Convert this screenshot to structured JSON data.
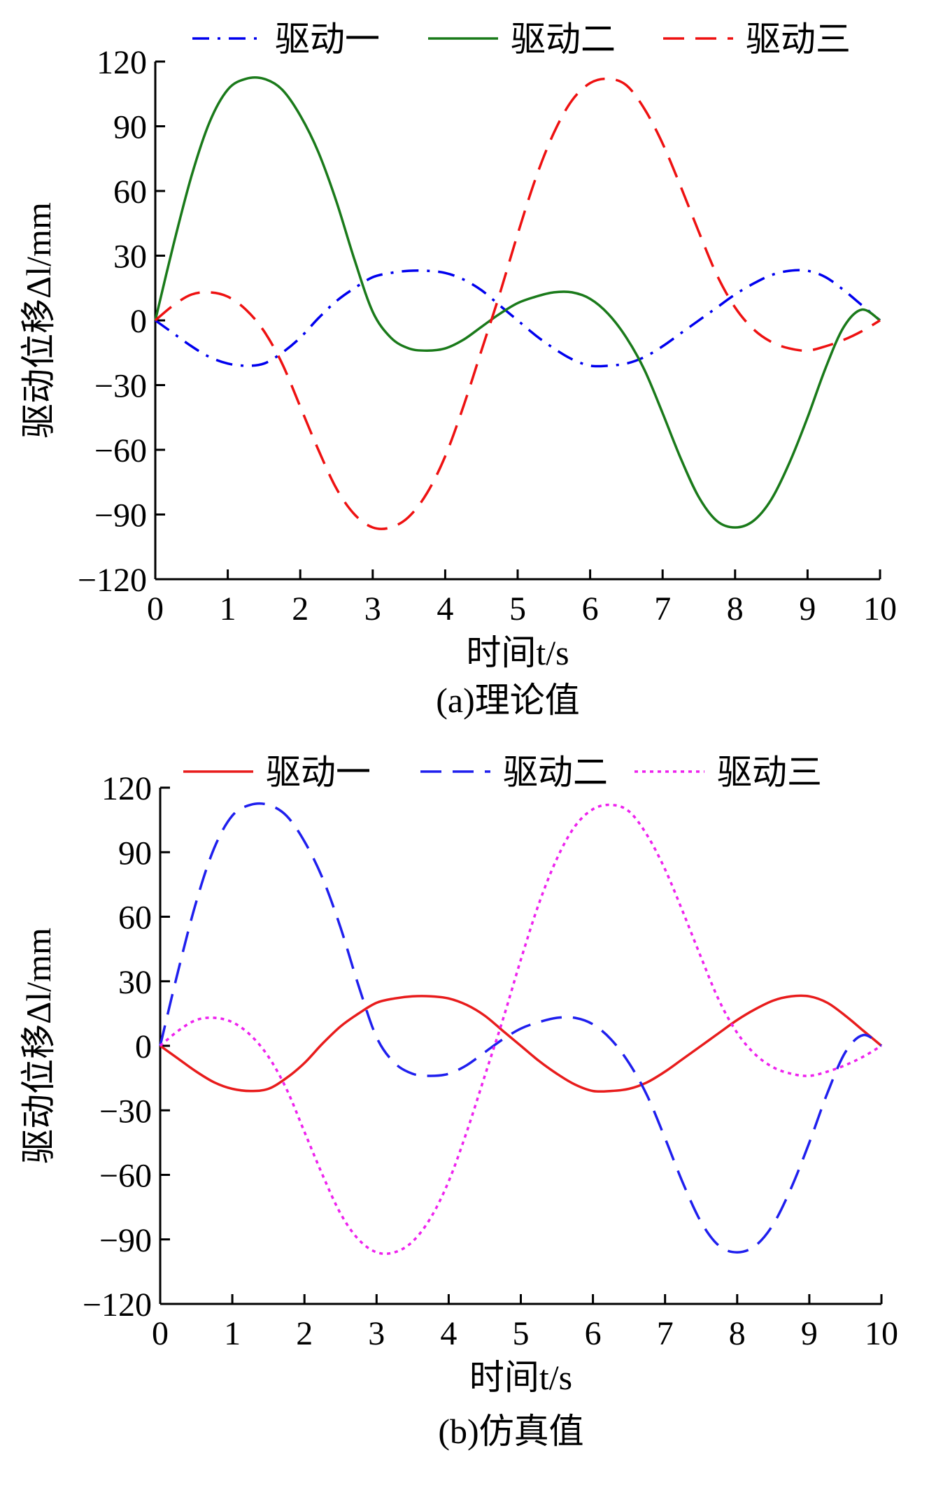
{
  "chart_data": [
    {
      "type": "line",
      "caption": "(a)理论值",
      "xlabel": "时间t/s",
      "ylabel": "驱动位移Δl/mm",
      "xlim": [
        0,
        10
      ],
      "ylim": [
        -120,
        120
      ],
      "x_ticks": [
        "0",
        "1",
        "2",
        "3",
        "4",
        "5",
        "6",
        "7",
        "8",
        "9",
        "10"
      ],
      "y_ticks": [
        "120",
        "90",
        "60",
        "30",
        "0",
        "−30",
        "−60",
        "−90",
        "−120"
      ],
      "grid": false,
      "legend_position": "top",
      "x": [
        0,
        0.25,
        0.5,
        0.75,
        1,
        1.25,
        1.5,
        1.75,
        2,
        2.25,
        2.5,
        2.75,
        3,
        3.25,
        3.5,
        3.75,
        4,
        4.25,
        4.5,
        4.75,
        5,
        5.25,
        5.5,
        5.75,
        6,
        6.25,
        6.5,
        6.75,
        7,
        7.25,
        7.5,
        7.75,
        8,
        8.25,
        8.5,
        8.75,
        9,
        9.25,
        9.5,
        9.75,
        10
      ],
      "series": [
        {
          "name": "驱动一",
          "color": "#0000ee",
          "dash": "dashdot",
          "values": [
            0,
            -6,
            -12,
            -17,
            -20,
            -21,
            -20,
            -15,
            -8,
            1,
            9,
            15,
            20,
            22,
            23,
            23,
            22,
            19,
            14,
            7,
            0,
            -7,
            -13,
            -18,
            -21,
            -21,
            -20,
            -17,
            -12,
            -6,
            0,
            6,
            12,
            17,
            21,
            23,
            23,
            20,
            14,
            7,
            0
          ]
        },
        {
          "name": "驱动二",
          "color": "#1a7a1a",
          "dash": "solid",
          "values": [
            0,
            35,
            67,
            92,
            107,
            112,
            112,
            107,
            95,
            78,
            55,
            28,
            4,
            -8,
            -13,
            -14,
            -13,
            -9,
            -3,
            3,
            8,
            11,
            13,
            13,
            10,
            3,
            -8,
            -23,
            -43,
            -64,
            -82,
            -93,
            -96,
            -93,
            -83,
            -66,
            -45,
            -22,
            -3,
            5,
            0
          ]
        },
        {
          "name": "驱动三",
          "color": "#ee1111",
          "dash": "dashed",
          "values": [
            0,
            7,
            12,
            13,
            11,
            5,
            -5,
            -20,
            -40,
            -60,
            -78,
            -90,
            -96,
            -96,
            -91,
            -80,
            -63,
            -40,
            -14,
            12,
            40,
            66,
            87,
            102,
            110,
            112,
            109,
            98,
            82,
            62,
            41,
            21,
            6,
            -4,
            -10,
            -13,
            -14,
            -12,
            -9,
            -5,
            0
          ]
        }
      ]
    },
    {
      "type": "line",
      "caption": "(b)仿真值",
      "xlabel": "时间t/s",
      "ylabel": "驱动位移Δl/mm",
      "xlim": [
        0,
        10
      ],
      "ylim": [
        -120,
        120
      ],
      "x_ticks": [
        "0",
        "1",
        "2",
        "3",
        "4",
        "5",
        "6",
        "7",
        "8",
        "9",
        "10"
      ],
      "y_ticks": [
        "120",
        "90",
        "60",
        "30",
        "0",
        "−30",
        "−60",
        "−90",
        "−120"
      ],
      "grid": false,
      "legend_position": "top",
      "x": [
        0,
        0.25,
        0.5,
        0.75,
        1,
        1.25,
        1.5,
        1.75,
        2,
        2.25,
        2.5,
        2.75,
        3,
        3.25,
        3.5,
        3.75,
        4,
        4.25,
        4.5,
        4.75,
        5,
        5.25,
        5.5,
        5.75,
        6,
        6.25,
        6.5,
        6.75,
        7,
        7.25,
        7.5,
        7.75,
        8,
        8.25,
        8.5,
        8.75,
        9,
        9.25,
        9.5,
        9.75,
        10
      ],
      "series": [
        {
          "name": "驱动一",
          "color": "#e81c1c",
          "dash": "solid",
          "values": [
            0,
            -6,
            -12,
            -17,
            -20,
            -21,
            -20,
            -15,
            -8,
            1,
            9,
            15,
            20,
            22,
            23,
            23,
            22,
            19,
            14,
            7,
            0,
            -7,
            -13,
            -18,
            -21,
            -21,
            -20,
            -17,
            -12,
            -6,
            0,
            6,
            12,
            17,
            21,
            23,
            23,
            20,
            14,
            7,
            0
          ]
        },
        {
          "name": "驱动二",
          "color": "#1f1fee",
          "dash": "dashed",
          "values": [
            0,
            35,
            67,
            92,
            107,
            112,
            112,
            107,
            95,
            78,
            55,
            28,
            4,
            -8,
            -13,
            -14,
            -13,
            -9,
            -3,
            3,
            8,
            11,
            13,
            13,
            10,
            3,
            -8,
            -23,
            -43,
            -64,
            -82,
            -93,
            -96,
            -93,
            -83,
            -66,
            -45,
            -22,
            -3,
            5,
            0
          ]
        },
        {
          "name": "驱动三",
          "color": "#ee22ee",
          "dash": "dotted",
          "values": [
            0,
            7,
            12,
            13,
            11,
            5,
            -5,
            -20,
            -40,
            -60,
            -78,
            -90,
            -96,
            -96,
            -91,
            -80,
            -63,
            -40,
            -14,
            12,
            40,
            66,
            87,
            102,
            110,
            112,
            109,
            98,
            82,
            62,
            41,
            21,
            6,
            -4,
            -10,
            -13,
            -14,
            -12,
            -9,
            -5,
            0
          ]
        }
      ]
    }
  ]
}
